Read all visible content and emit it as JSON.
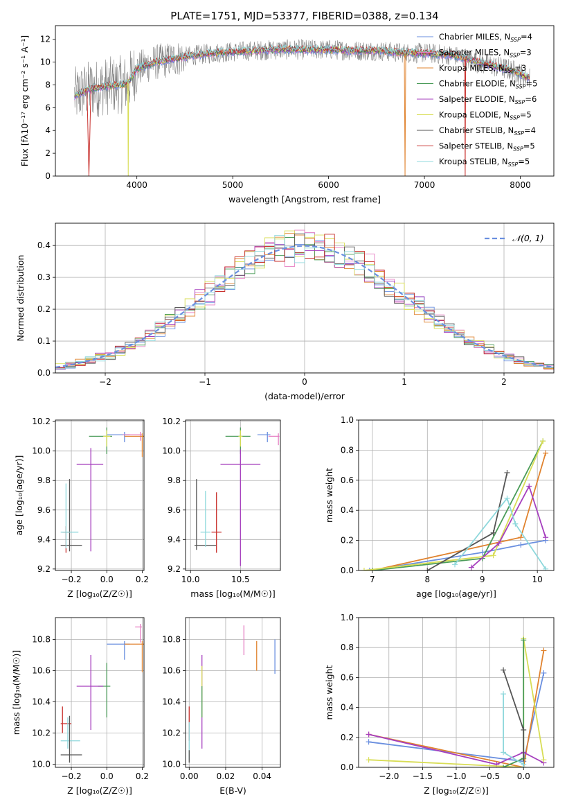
{
  "figure": {
    "title": "PLATE=1751, MJD=53377, FIBERID=0388, z=0.134"
  },
  "colors": {
    "series": [
      "#6a8fdf",
      "#e67fc3",
      "#e0832f",
      "#4b9c59",
      "#a63fbe",
      "#d8dd55",
      "#555555",
      "#c8302d",
      "#8fd8dc"
    ],
    "gaussian": "#6a8fdf",
    "grid": "#b0b0b0"
  },
  "series_names": [
    "Chabrier MILES, N_SSP=4",
    "Salpeter MILES, N_SSP=3",
    "Kroupa MILES, N_SSP=3",
    "Chabrier ELODIE, N_SSP=5",
    "Salpeter ELODIE, N_SSP=6",
    "Kroupa ELODIE, N_SSP=5",
    "Chabrier STELIB, N_SSP=4",
    "Salpeter STELIB, N_SSP=5",
    "Kroupa STELIB, N_SSP=5"
  ],
  "chart_data": [
    {
      "id": "spectrum",
      "type": "line",
      "xlabel": "wavelength [Angstrom, rest frame]",
      "ylabel": "Flux [fλ10⁻¹⁷ erg cm⁻² s⁻¹ A⁻¹]",
      "xlim": [
        3150,
        8350
      ],
      "ylim": [
        0,
        13.2
      ],
      "xticks": [
        4000,
        5000,
        6000,
        7000,
        8000
      ],
      "yticks": [
        0,
        2,
        4,
        6,
        8,
        10,
        12
      ],
      "grid": false,
      "legend": "top-right",
      "continuum": {
        "x": [
          3350,
          3500,
          3700,
          3900,
          4000,
          4200,
          4400,
          4600,
          4800,
          5000,
          5200,
          5500,
          5800,
          6000,
          6300,
          6500,
          6800,
          7000,
          7300,
          7600,
          7900,
          8100
        ],
        "y": [
          7.0,
          7.6,
          7.9,
          8.1,
          9.4,
          10.0,
          10.3,
          10.6,
          10.8,
          10.9,
          11.0,
          11.1,
          11.1,
          11.1,
          11.0,
          11.0,
          10.8,
          10.8,
          10.6,
          9.9,
          9.3,
          8.6
        ]
      },
      "dips": [
        {
          "series": 7,
          "x": [
            3480,
            3520
          ],
          "min": 0.0
        },
        {
          "series": 5,
          "x": [
            3905,
            3915
          ],
          "min": 0.0
        },
        {
          "series": 2,
          "x": [
            6790,
            6805
          ],
          "min": 0.0
        },
        {
          "series": 7,
          "x": [
            7420,
            7430
          ],
          "min": 0.0
        }
      ]
    },
    {
      "id": "residuals",
      "type": "line",
      "xlabel": "(data-model)/error",
      "ylabel": "Normed distribution",
      "xlim": [
        -2.5,
        2.5
      ],
      "ylim": [
        0,
        0.47
      ],
      "xticks": [
        -2,
        -1,
        0,
        1,
        2
      ],
      "xtick_labels": [
        "−2",
        "−1",
        "0",
        "1",
        "2"
      ],
      "yticks": [
        0.0,
        0.1,
        0.2,
        0.3,
        0.4
      ],
      "grid": true,
      "legend": "top-right",
      "gaussian_label": "𝒩(0, 1)"
    },
    {
      "id": "age-vs-Z",
      "type": "scatter",
      "xlabel": "Z [log₁₀(Z/Z☉)]",
      "ylabel": "age  [log₁₀(age/yr)]",
      "xlim": [
        -0.29,
        0.21
      ],
      "ylim": [
        9.19,
        10.21
      ],
      "xticks": [
        -0.2,
        0.0,
        0.2
      ],
      "xtick_labels": [
        "−0.2",
        "0.0",
        "0.2"
      ],
      "yticks": [
        9.2,
        9.4,
        9.6,
        9.8,
        10.0,
        10.2
      ],
      "grid": true,
      "points": [
        {
          "series": 0,
          "x": 0.1,
          "y": 10.11,
          "xerr": [
            0.1,
            0.03
          ],
          "yerr": [
            0.05,
            0.02
          ]
        },
        {
          "series": 1,
          "x": 0.19,
          "y": 10.11,
          "xerr": [
            0.1,
            0.01
          ],
          "yerr": [
            0.04,
            0.02
          ]
        },
        {
          "series": 2,
          "x": 0.2,
          "y": 10.1,
          "xerr": [
            0.1,
            0.01
          ],
          "yerr": [
            0.14,
            0.02
          ]
        },
        {
          "series": 3,
          "x": 0.0,
          "y": 10.1,
          "xerr": [
            0.1,
            0.03
          ],
          "yerr": [
            0.12,
            0.06
          ]
        },
        {
          "series": 4,
          "x": -0.09,
          "y": 9.91,
          "xerr": [
            0.08,
            0.07
          ],
          "yerr": [
            0.59,
            0.11
          ]
        },
        {
          "series": 5,
          "x": 0.0,
          "y": 10.1,
          "xerr": [
            0.02,
            0.02
          ],
          "yerr": [
            0.07,
            0.04
          ]
        },
        {
          "series": 6,
          "x": -0.21,
          "y": 9.36,
          "xerr": [
            0.05,
            0.07
          ],
          "yerr": [
            0.04,
            0.45
          ]
        },
        {
          "series": 7,
          "x": -0.23,
          "y": 9.45,
          "xerr": [
            0.02,
            0.02
          ],
          "yerr": [
            0.14,
            0.04
          ]
        },
        {
          "series": 8,
          "x": -0.23,
          "y": 9.45,
          "xerr": [
            0.03,
            0.07
          ],
          "yerr": [
            0.11,
            0.33
          ]
        }
      ]
    },
    {
      "id": "age-vs-mass",
      "type": "scatter",
      "xlabel": "mass [log₁₀(M/M☉)]",
      "ylabel": "",
      "xlim": [
        9.95,
        10.9
      ],
      "ylim": [
        9.19,
        10.21
      ],
      "xticks": [
        10.0,
        10.5
      ],
      "yticks": [
        9.2,
        9.4,
        9.6,
        9.8,
        10.0,
        10.2
      ],
      "grid": true,
      "points": [
        {
          "series": 0,
          "x": 10.77,
          "y": 10.11,
          "xerr": [
            0.1,
            0.03
          ],
          "yerr": [
            0.05,
            0.02
          ]
        },
        {
          "series": 1,
          "x": 10.88,
          "y": 10.1,
          "xerr": [
            0.1,
            0.01
          ],
          "yerr": [
            0.06,
            0.02
          ]
        },
        {
          "series": 3,
          "x": 10.5,
          "y": 10.1,
          "xerr": [
            0.15,
            0.1
          ],
          "yerr": [
            0.12,
            0.06
          ]
        },
        {
          "series": 5,
          "x": 10.5,
          "y": 10.1,
          "xerr": [
            0.02,
            0.02
          ],
          "yerr": [
            0.07,
            0.04
          ]
        },
        {
          "series": 4,
          "x": 10.5,
          "y": 9.91,
          "xerr": [
            0.2,
            0.2
          ],
          "yerr": [
            0.69,
            0.1
          ]
        },
        {
          "series": 6,
          "x": 10.06,
          "y": 9.36,
          "xerr": [
            0.02,
            0.2
          ],
          "yerr": [
            0.03,
            0.45
          ]
        },
        {
          "series": 7,
          "x": 10.26,
          "y": 9.45,
          "xerr": [
            0.05,
            0.05
          ],
          "yerr": [
            0.14,
            0.27
          ]
        },
        {
          "series": 8,
          "x": 10.15,
          "y": 9.45,
          "xerr": [
            0.05,
            0.05
          ],
          "yerr": [
            0.1,
            0.28
          ]
        }
      ]
    },
    {
      "id": "weight-vs-age",
      "type": "line",
      "xlabel": "age  [log₁₀(age/yr)]",
      "ylabel": "mass weight",
      "xlim": [
        6.75,
        10.3
      ],
      "ylim": [
        0,
        1.0
      ],
      "xticks": [
        7,
        8,
        9,
        10
      ],
      "yticks": [
        0.0,
        0.2,
        0.4,
        0.6,
        0.8,
        1.0
      ],
      "grid": true,
      "lines": [
        {
          "series": 0,
          "x": [
            6.95,
            9.0,
            9.7,
            10.15
          ],
          "y": [
            0.0,
            0.12,
            0.17,
            0.2
          ]
        },
        {
          "series": 2,
          "x": [
            7.0,
            9.7,
            10.15
          ],
          "y": [
            0.0,
            0.22,
            0.78
          ]
        },
        {
          "series": 3,
          "x": [
            7.0,
            9.0,
            10.1
          ],
          "y": [
            0.0,
            0.08,
            0.86
          ]
        },
        {
          "series": 5,
          "x": [
            6.85,
            9.2,
            10.1
          ],
          "y": [
            0.0,
            0.1,
            0.86
          ]
        },
        {
          "series": 6,
          "x": [
            8.0,
            9.2,
            9.45
          ],
          "y": [
            0.0,
            0.25,
            0.65
          ]
        },
        {
          "series": 4,
          "x": [
            8.8,
            9.3,
            9.85,
            10.15
          ],
          "y": [
            0.02,
            0.18,
            0.56,
            0.22
          ]
        },
        {
          "series": 8,
          "x": [
            8.5,
            9.45,
            9.6,
            10.15
          ],
          "y": [
            0.04,
            0.48,
            0.31,
            0.01
          ]
        }
      ]
    },
    {
      "id": "mass-vs-Z",
      "type": "scatter",
      "xlabel": "Z [log₁₀(Z/Z☉)]",
      "ylabel": "mass [log₁₀(M/M☉)]",
      "xlim": [
        -0.29,
        0.21
      ],
      "ylim": [
        9.98,
        10.94
      ],
      "xticks": [
        -0.2,
        0.0,
        0.2
      ],
      "xtick_labels": [
        "−0.2",
        "0.0",
        "0.2"
      ],
      "yticks": [
        10.0,
        10.2,
        10.4,
        10.6,
        10.8
      ],
      "grid": true,
      "points": [
        {
          "series": 1,
          "x": 0.19,
          "y": 10.88,
          "xerr": [
            0.03,
            0.01
          ],
          "yerr": [
            0.1,
            0.02
          ]
        },
        {
          "series": 0,
          "x": 0.1,
          "y": 10.77,
          "xerr": [
            0.1,
            0.03
          ],
          "yerr": [
            0.1,
            0.02
          ]
        },
        {
          "series": 2,
          "x": 0.2,
          "y": 10.77,
          "xerr": [
            0.1,
            0.01
          ],
          "yerr": [
            0.18,
            0.02
          ]
        },
        {
          "series": 3,
          "x": 0.0,
          "y": 10.5,
          "xerr": [
            0.05,
            0.02
          ],
          "yerr": [
            0.2,
            0.15
          ]
        },
        {
          "series": 4,
          "x": -0.09,
          "y": 10.5,
          "xerr": [
            0.08,
            0.07
          ],
          "yerr": [
            0.28,
            0.2
          ]
        },
        {
          "series": 7,
          "x": -0.25,
          "y": 10.26,
          "xerr": [
            0.01,
            0.05
          ],
          "yerr": [
            0.06,
            0.11
          ]
        },
        {
          "series": 8,
          "x": -0.22,
          "y": 10.15,
          "xerr": [
            0.04,
            0.07
          ],
          "yerr": [
            0.05,
            0.15
          ]
        },
        {
          "series": 6,
          "x": -0.21,
          "y": 10.06,
          "xerr": [
            0.05,
            0.07
          ],
          "yerr": [
            0.05,
            0.25
          ]
        }
      ]
    },
    {
      "id": "mass-vs-EBV",
      "type": "scatter",
      "xlabel": "E(B-V)",
      "ylabel": "",
      "xlim": [
        -0.002,
        0.05
      ],
      "ylim": [
        9.98,
        10.94
      ],
      "xticks": [
        0.0,
        0.02,
        0.04
      ],
      "xtick_labels": [
        "0.00",
        "0.02",
        "0.04"
      ],
      "yticks": [
        10.0,
        10.2,
        10.4,
        10.6,
        10.8
      ],
      "grid": true,
      "points": [
        {
          "series": 1,
          "x": 0.03,
          "y": 10.8,
          "yerr": [
            0.1,
            0.09
          ]
        },
        {
          "series": 2,
          "x": 0.037,
          "y": 10.69,
          "yerr": [
            0.09,
            0.1
          ]
        },
        {
          "series": 0,
          "x": 0.047,
          "y": 10.69,
          "yerr": [
            0.11,
            0.11
          ]
        },
        {
          "series": 4,
          "x": 0.007,
          "y": 10.4,
          "yerr": [
            0.3,
            0.3
          ]
        },
        {
          "series": 5,
          "x": 0.007,
          "y": 10.45,
          "yerr": [
            0.15,
            0.18
          ]
        },
        {
          "series": 3,
          "x": 0.007,
          "y": 10.4,
          "yerr": [
            0.1,
            0.1
          ]
        },
        {
          "series": 7,
          "x": 0.0,
          "y": 10.26,
          "yerr": [
            0.11,
            0.11
          ]
        },
        {
          "series": 8,
          "x": 0.0,
          "y": 10.15,
          "yerr": [
            0.12,
            0.12
          ]
        },
        {
          "series": 6,
          "x": 0.0,
          "y": 10.05,
          "yerr": [
            0.04,
            0.04
          ]
        }
      ]
    },
    {
      "id": "weight-vs-Z",
      "type": "line",
      "xlabel": "Z [log₁₀(Z/Z☉)]",
      "ylabel": "mass weight",
      "xlim": [
        -2.45,
        0.45
      ],
      "ylim": [
        0,
        1.0
      ],
      "xticks": [
        -2.0,
        -1.5,
        -1.0,
        -0.5,
        0.0
      ],
      "xtick_labels": [
        "−2.0",
        "−1.5",
        "−1.0",
        "−0.5",
        "0.0"
      ],
      "yticks": [
        0.0,
        0.2,
        0.4,
        0.6,
        0.8,
        1.0
      ],
      "grid": true,
      "lines": [
        {
          "series": 0,
          "x": [
            -2.3,
            0.0,
            0.3
          ],
          "y": [
            0.17,
            0.04,
            0.63
          ]
        },
        {
          "series": 2,
          "x": [
            -2.3,
            0.0,
            0.3
          ],
          "y": [
            0.22,
            0.0,
            0.78
          ]
        },
        {
          "series": 4,
          "x": [
            -2.3,
            -0.4,
            0.0,
            0.3
          ],
          "y": [
            0.22,
            0.02,
            0.1,
            0.03
          ]
        },
        {
          "series": 5,
          "x": [
            -2.3,
            0.0,
            0.0,
            0.3
          ],
          "y": [
            0.05,
            0.0,
            0.86,
            0.05
          ]
        },
        {
          "series": 3,
          "x": [
            -0.3,
            0.0,
            0.0
          ],
          "y": [
            0.0,
            0.06,
            0.85
          ]
        },
        {
          "series": 6,
          "x": [
            -0.3,
            0.0,
            0.0
          ],
          "y": [
            0.65,
            0.25,
            0.0
          ]
        },
        {
          "series": 8,
          "x": [
            -0.3,
            -0.3,
            0.0,
            0.0
          ],
          "y": [
            0.49,
            0.1,
            0.02,
            0.0
          ]
        }
      ]
    }
  ]
}
